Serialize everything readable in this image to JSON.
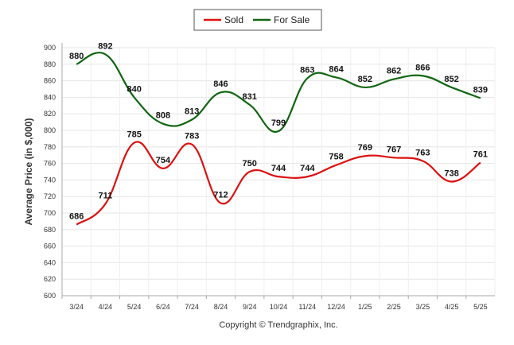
{
  "chart_data": {
    "type": "line",
    "categories": [
      "3/24",
      "4/24",
      "5/24",
      "6/24",
      "7/24",
      "8/24",
      "9/24",
      "10/24",
      "11/24",
      "12/24",
      "1/25",
      "2/25",
      "3/25",
      "4/25",
      "5/25"
    ],
    "series": [
      {
        "name": "Sold",
        "color": "#dd1111",
        "values": [
          686,
          711,
          785,
          754,
          783,
          712,
          750,
          744,
          744,
          758,
          769,
          767,
          763,
          738,
          761
        ]
      },
      {
        "name": "For Sale",
        "color": "#116611",
        "values": [
          880,
          892,
          840,
          808,
          813,
          846,
          831,
          799,
          863,
          864,
          852,
          862,
          866,
          852,
          839
        ]
      }
    ],
    "ylabel": "Average Price (in $,000)",
    "ylim": [
      600,
      900
    ],
    "yticks": [
      600,
      620,
      640,
      660,
      680,
      700,
      720,
      740,
      760,
      780,
      800,
      820,
      840,
      860,
      880,
      900
    ],
    "grid": true,
    "legend_position": "top-center"
  },
  "copyright": "Copyright © Trendgraphix, Inc."
}
